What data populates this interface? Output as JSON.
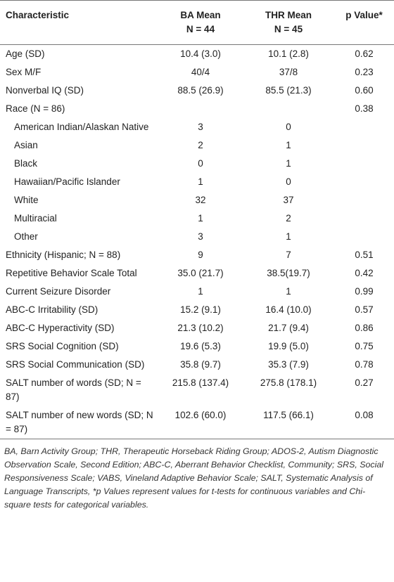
{
  "table": {
    "header": [
      "Characteristic",
      [
        "BA Mean",
        "N = 44"
      ],
      [
        "THR Mean",
        "N = 45"
      ],
      "p Value*"
    ],
    "rows": [
      {
        "label": "Age (SD)",
        "cells": [
          "10.4 (3.0)",
          "10.1 (2.8)",
          "0.62"
        ]
      },
      {
        "label": "Sex M/F",
        "cells": [
          "40/4",
          "37/8",
          "0.23"
        ]
      },
      {
        "label": "Nonverbal IQ (SD)",
        "cells": [
          "88.5 (26.9)",
          "85.5 (21.3)",
          "0.60"
        ]
      },
      {
        "label": "Race (N = 86)",
        "cells": [
          null,
          null,
          "0.38"
        ],
        "subrows": [
          {
            "label": "American Indian/Alaskan Native",
            "cells": [
              "3",
              "0",
              null
            ]
          },
          {
            "label": "Asian",
            "cells": [
              "2",
              "1",
              null
            ]
          },
          {
            "label": "Black",
            "cells": [
              "0",
              "1",
              null
            ]
          },
          {
            "label": "Hawaiian/Pacific Islander",
            "cells": [
              "1",
              "0",
              null
            ]
          },
          {
            "label": "White",
            "cells": [
              "32",
              "37",
              null
            ]
          },
          {
            "label": "Multiracial",
            "cells": [
              "1",
              "2",
              null
            ]
          },
          {
            "label": "Other",
            "cells": [
              "3",
              "1",
              null
            ]
          }
        ]
      },
      {
        "label": "Ethnicity (Hispanic; N = 88)",
        "cells": [
          "9",
          "7",
          "0.51"
        ]
      },
      {
        "label": "Repetitive Behavior Scale Total",
        "cells": [
          "35.0 (21.7)",
          "38.5(19.7)",
          "0.42"
        ]
      },
      {
        "label": "Current Seizure Disorder",
        "cells": [
          "1",
          "1",
          "0.99"
        ]
      },
      {
        "label": "ABC-C Irritability (SD)",
        "cells": [
          "15.2 (9.1)",
          "16.4 (10.0)",
          "0.57"
        ]
      },
      {
        "label": "ABC-C Hyperactivity (SD)",
        "cells": [
          "21.3 (10.2)",
          "21.7 (9.4)",
          "0.86"
        ]
      },
      {
        "label": "SRS Social Cognition (SD)",
        "cells": [
          "19.6 (5.3)",
          "19.9 (5.0)",
          "0.75"
        ]
      },
      {
        "label": "SRS Social Communication (SD)",
        "cells": [
          "35.8 (9.7)",
          "35.3 (7.9)",
          "0.78"
        ]
      },
      {
        "label": "SALT number of words (SD; N = 87)",
        "cells": [
          "215.8 (137.4)",
          "275.8 (178.1)",
          "0.27"
        ]
      },
      {
        "label": "SALT number of new words (SD; N = 87)",
        "cells": [
          "102.6 (60.0)",
          "117.5 (66.1)",
          "0.08"
        ]
      }
    ]
  },
  "footnote": "BA, Barn Activity Group; THR, Therapeutic Horseback Riding Group; ADOS-2, Autism Diagnostic Observation Scale, Second Edition; ABC-C, Aberrant Behavior Checklist, Community; SRS, Social Responsiveness Scale; VABS, Vineland Adaptive Behavior Scale; SALT, Systematic Analysis of Language Transcripts, *p Values represent values for t-tests for continuous variables and Chi-square tests for categorical variables."
}
